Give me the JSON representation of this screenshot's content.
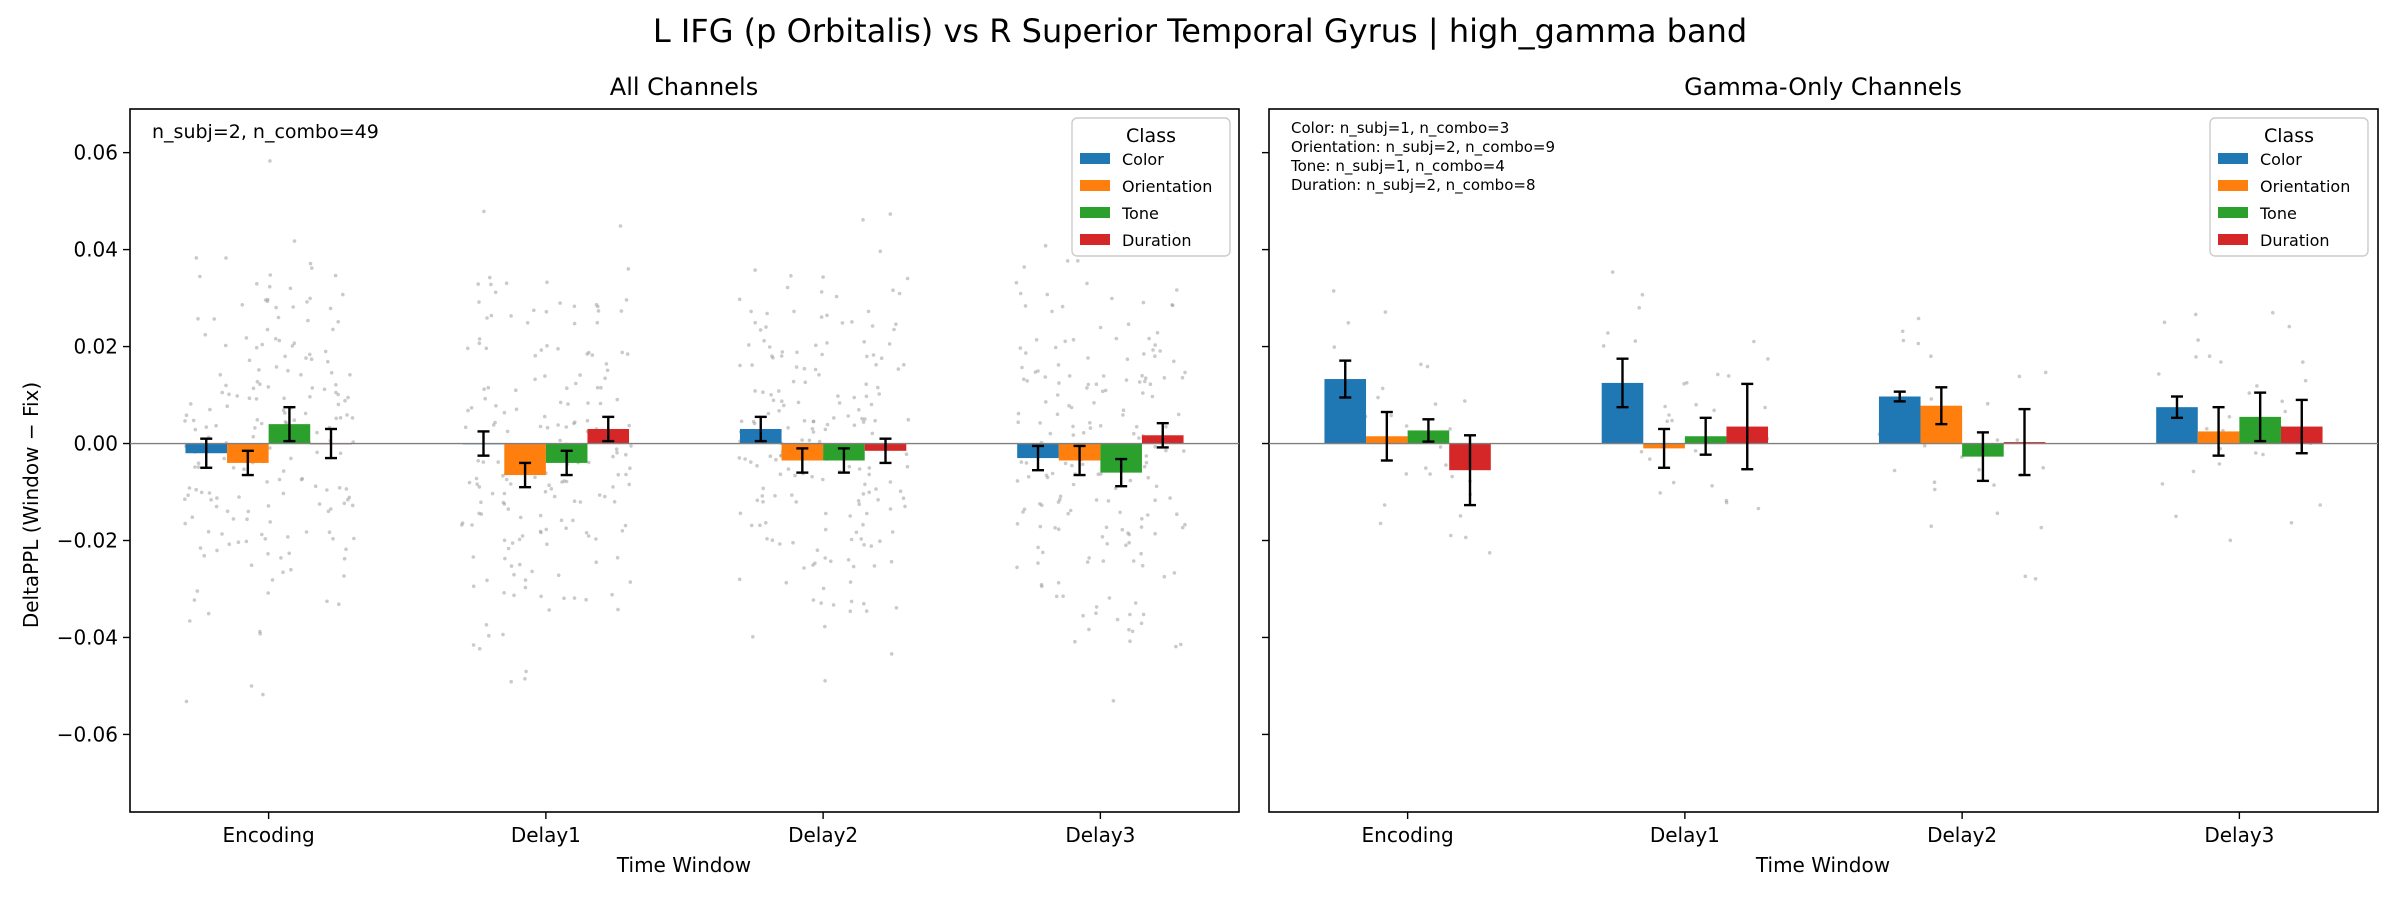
{
  "figure": {
    "suptitle": "L IFG (p Orbitalis) vs R Superior Temporal Gyrus  |  high_gamma band",
    "ylabel": "DeltaPPL (Window − Fix)",
    "legend_title": "Class",
    "colors": {
      "Color": "#1f77b4",
      "Orientation": "#ff7f0e",
      "Tone": "#2ca02c",
      "Duration": "#d62728"
    }
  },
  "chart_data": [
    {
      "type": "bar",
      "title": "All Channels",
      "xlabel": "Time Window",
      "ylabel": "DeltaPPL (Window − Fix)",
      "ylim": [
        -0.076,
        0.069
      ],
      "yticks": [
        -0.06,
        -0.04,
        -0.02,
        0.0,
        0.02,
        0.04,
        0.06
      ],
      "ytick_labels": [
        "−0.06",
        "−0.04",
        "−0.02",
        "0.00",
        "0.02",
        "0.04",
        "0.06"
      ],
      "categories": [
        "Encoding",
        "Delay1",
        "Delay2",
        "Delay3"
      ],
      "annotation": [
        "n_subj=2, n_combo=49"
      ],
      "legend_position": "top-right",
      "series": [
        {
          "name": "Color",
          "values": [
            -0.002,
            0.0,
            0.003,
            -0.003
          ],
          "errors": [
            0.003,
            0.0025,
            0.0025,
            0.0025
          ]
        },
        {
          "name": "Orientation",
          "values": [
            -0.004,
            -0.0065,
            -0.0035,
            -0.0035
          ],
          "errors": [
            0.0025,
            0.0025,
            0.0025,
            0.003
          ]
        },
        {
          "name": "Tone",
          "values": [
            0.004,
            -0.004,
            -0.0035,
            -0.006
          ],
          "errors": [
            0.0035,
            0.0025,
            0.0025,
            0.0028
          ]
        },
        {
          "name": "Duration",
          "values": [
            0.0,
            0.003,
            -0.0015,
            0.0017
          ],
          "errors": [
            0.003,
            0.0025,
            0.0025,
            0.0025
          ]
        }
      ]
    },
    {
      "type": "bar",
      "title": "Gamma-Only Channels",
      "xlabel": "Time Window",
      "ylim": [
        -0.076,
        0.069
      ],
      "categories": [
        "Encoding",
        "Delay1",
        "Delay2",
        "Delay3"
      ],
      "annotation": [
        "Color: n_subj=1, n_combo=3",
        "Orientation: n_subj=2, n_combo=9",
        "Tone: n_subj=1, n_combo=4",
        "Duration: n_subj=2, n_combo=8"
      ],
      "legend_position": "top-right",
      "series": [
        {
          "name": "Color",
          "values": [
            0.0133,
            0.0125,
            0.0097,
            0.0075
          ],
          "errors": [
            0.0038,
            0.005,
            0.001,
            0.0022
          ]
        },
        {
          "name": "Orientation",
          "values": [
            0.0015,
            -0.001,
            0.0078,
            0.0025
          ],
          "errors": [
            0.005,
            0.004,
            0.0038,
            0.005
          ]
        },
        {
          "name": "Tone",
          "values": [
            0.0027,
            0.0015,
            -0.0027,
            0.0055
          ],
          "errors": [
            0.0023,
            0.0038,
            0.005,
            0.005
          ]
        },
        {
          "name": "Duration",
          "values": [
            -0.0055,
            0.0035,
            0.0003,
            0.0035
          ],
          "errors": [
            0.0072,
            0.0088,
            0.0068,
            0.0055
          ]
        }
      ]
    }
  ]
}
